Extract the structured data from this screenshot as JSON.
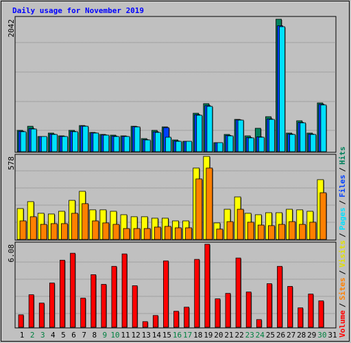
{
  "title": "Daily usage for November 2019",
  "legend_separator": "/",
  "categories": [
    "1",
    "2",
    "3",
    "4",
    "5",
    "6",
    "7",
    "8",
    "9",
    "10",
    "11",
    "12",
    "13",
    "14",
    "15",
    "16",
    "17",
    "18",
    "19",
    "20",
    "21",
    "22",
    "23",
    "24",
    "25",
    "26",
    "27",
    "28",
    "29",
    "30",
    "31"
  ],
  "category_colors": [
    "#000000",
    "#008040",
    "#008040",
    "#000000",
    "#000000",
    "#000000",
    "#000000",
    "#000000",
    "#008040",
    "#008040",
    "#000000",
    "#000000",
    "#000000",
    "#000000",
    "#000000",
    "#008040",
    "#008040",
    "#000000",
    "#000000",
    "#000000",
    "#000000",
    "#000000",
    "#008040",
    "#008040",
    "#000000",
    "#000000",
    "#000000",
    "#000000",
    "#000000",
    "#008040",
    "#000000"
  ],
  "chart_data": [
    {
      "type": "bar",
      "ylim": [
        0,
        2042
      ],
      "yticks": [
        2042
      ],
      "series": [
        {
          "name": "Hits",
          "color": "#00805c",
          "values": [
            328,
            391,
            233,
            286,
            243,
            328,
            402,
            296,
            265,
            254,
            243,
            391,
            201,
            328,
            381,
            180,
            159,
            592,
            740,
            138,
            265,
            497,
            243,
            360,
            539,
            2042,
            286,
            476,
            286,
            751,
            null
          ]
        },
        {
          "name": "Files",
          "color": "#0040ff",
          "values": [
            315,
            355,
            233,
            270,
            236,
            312,
            395,
            290,
            258,
            240,
            236,
            385,
            185,
            305,
            370,
            165,
            159,
            570,
            710,
            138,
            250,
            490,
            218,
            228,
            505,
            1940,
            272,
            450,
            270,
            730,
            null
          ]
        },
        {
          "name": "Pages",
          "color": "#00e0ff",
          "values": [
            307,
            349,
            233,
            265,
            233,
            307,
            391,
            286,
            254,
            233,
            233,
            381,
            180,
            296,
            222,
            159,
            159,
            561,
            698,
            138,
            243,
            486,
            212,
            222,
            497,
            1926,
            265,
            444,
            265,
            720,
            null
          ]
        }
      ]
    },
    {
      "type": "bar",
      "ylim": [
        0,
        578
      ],
      "yticks": [
        578
      ],
      "series": [
        {
          "name": "Visits",
          "color": "#ffff00",
          "values": [
            215,
            263,
            182,
            177,
            196,
            272,
            335,
            206,
            206,
            196,
            172,
            158,
            158,
            148,
            148,
            129,
            129,
            497,
            578,
            115,
            210,
            296,
            182,
            172,
            186,
            186,
            210,
            206,
            196,
            416,
            null
          ]
        },
        {
          "name": "Sites",
          "color": "#ff8000",
          "values": [
            129,
            158,
            105,
            110,
            110,
            182,
            249,
            129,
            115,
            105,
            76,
            76,
            76,
            86,
            91,
            81,
            81,
            421,
            497,
            72,
            124,
            210,
            120,
            100,
            96,
            105,
            124,
            105,
            120,
            325,
            null
          ]
        }
      ]
    },
    {
      "type": "bar",
      "ylim": [
        0,
        6.08
      ],
      "yticks": [
        6.08
      ],
      "series": [
        {
          "name": "Volume",
          "color": "#ff0000",
          "values": [
            0.91,
            2.38,
            1.77,
            3.24,
            4.91,
            5.42,
            2.13,
            3.85,
            3.14,
            4.46,
            5.37,
            3.04,
            0.41,
            0.86,
            4.86,
            1.17,
            1.47,
            4.97,
            6.08,
            2.08,
            2.48,
            5.07,
            2.58,
            0.56,
            3.19,
            4.46,
            2.99,
            1.42,
            2.43,
            1.93,
            null
          ]
        }
      ]
    }
  ]
}
